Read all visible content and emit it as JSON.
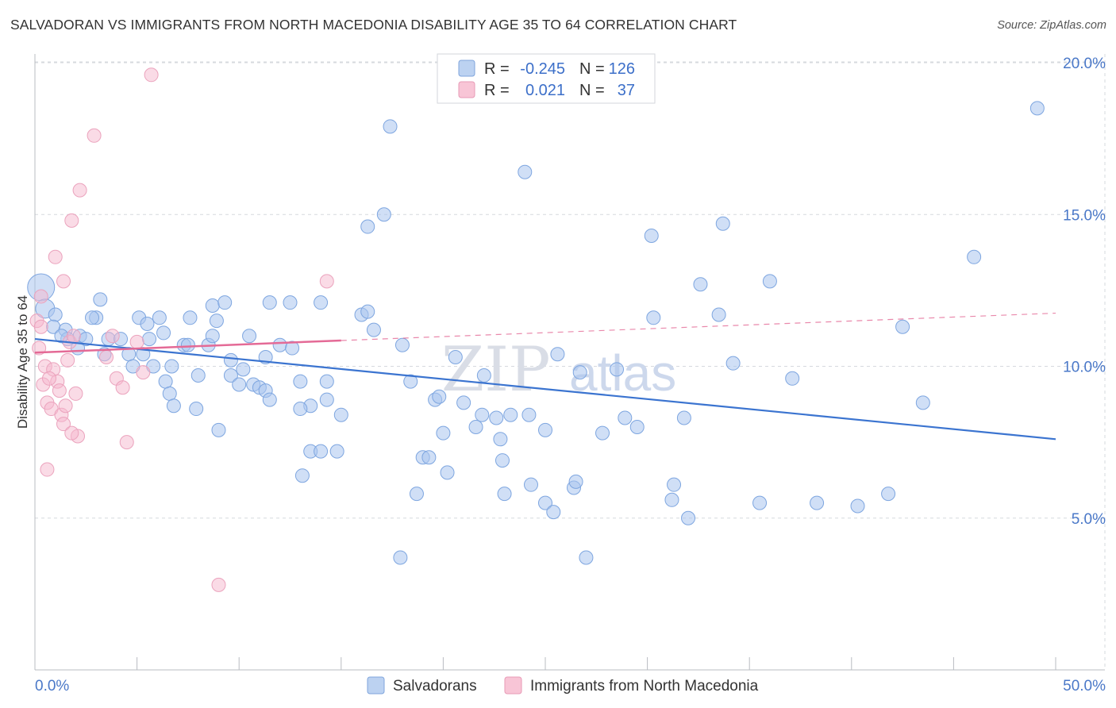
{
  "title": "SALVADORAN VS IMMIGRANTS FROM NORTH MACEDONIA DISABILITY AGE 35 TO 64 CORRELATION CHART",
  "source": "Source: ZipAtlas.com",
  "watermark": {
    "zip": "ZIP",
    "atlas": "atlas"
  },
  "colors": {
    "blue": "#3b74d0",
    "blue_fill": "#a9c5ee",
    "pink": "#e46a96",
    "pink_fill": "#f5b8cd",
    "grid": "#d6d9de",
    "axis_text": "#4a78c8"
  },
  "stats": {
    "rows": [
      {
        "r_label": "R =",
        "r_value": "-0.245",
        "n_label": "N =",
        "n_value": "126"
      },
      {
        "r_label": "R =",
        "r_value": "0.021",
        "n_label": "N =",
        "n_value": "37"
      }
    ]
  },
  "chart_data": {
    "type": "scatter",
    "title": "SALVADORAN VS IMMIGRANTS FROM NORTH MACEDONIA DISABILITY AGE 35 TO 64 CORRELATION CHART",
    "xlabel": "",
    "ylabel": "Disability Age 35 to 64",
    "xlim": [
      0,
      50
    ],
    "ylim": [
      0,
      20.5
    ],
    "x_tick_labels": [
      "0.0%",
      "50.0%"
    ],
    "y_ticks": [
      5,
      10,
      15,
      20
    ],
    "y_tick_labels": [
      "5.0%",
      "10.0%",
      "15.0%",
      "20.0%"
    ],
    "legend": [
      "Salvadorans",
      "Immigrants from North Macedonia"
    ],
    "series": [
      {
        "name": "Salvadorans",
        "r": -0.245,
        "n": 126,
        "trend": {
          "x": [
            0,
            50
          ],
          "y": [
            10.9,
            7.6
          ],
          "style": "solid"
        },
        "points": [
          [
            0.3,
            12.6
          ],
          [
            0.5,
            11.9
          ],
          [
            1.0,
            11.7
          ],
          [
            0.9,
            11.3
          ],
          [
            1.5,
            11.2
          ],
          [
            2.2,
            11.0
          ],
          [
            1.6,
            10.9
          ],
          [
            2.5,
            10.9
          ],
          [
            2.1,
            10.6
          ],
          [
            3.2,
            12.2
          ],
          [
            3.0,
            11.6
          ],
          [
            3.6,
            10.9
          ],
          [
            4.2,
            10.9
          ],
          [
            4.6,
            10.4
          ],
          [
            3.4,
            10.4
          ],
          [
            4.8,
            10.0
          ],
          [
            5.3,
            10.4
          ],
          [
            5.6,
            10.9
          ],
          [
            5.1,
            11.6
          ],
          [
            5.5,
            11.4
          ],
          [
            6.1,
            11.6
          ],
          [
            6.3,
            11.1
          ],
          [
            5.8,
            10.0
          ],
          [
            6.7,
            10.0
          ],
          [
            6.4,
            9.5
          ],
          [
            6.6,
            9.1
          ],
          [
            6.8,
            8.7
          ],
          [
            7.3,
            10.7
          ],
          [
            7.5,
            10.7
          ],
          [
            7.6,
            11.6
          ],
          [
            8.0,
            9.7
          ],
          [
            7.9,
            8.6
          ],
          [
            8.5,
            10.7
          ],
          [
            8.7,
            12.0
          ],
          [
            8.9,
            11.5
          ],
          [
            8.7,
            11.0
          ],
          [
            9.3,
            12.1
          ],
          [
            9.6,
            10.2
          ],
          [
            9.6,
            9.7
          ],
          [
            9.0,
            7.9
          ],
          [
            10.0,
            9.4
          ],
          [
            10.2,
            9.9
          ],
          [
            10.7,
            9.4
          ],
          [
            11.0,
            9.3
          ],
          [
            11.3,
            9.2
          ],
          [
            10.5,
            11.0
          ],
          [
            11.5,
            12.1
          ],
          [
            11.3,
            10.3
          ],
          [
            12.0,
            10.7
          ],
          [
            12.6,
            10.6
          ],
          [
            12.5,
            12.1
          ],
          [
            13.0,
            9.5
          ],
          [
            13.5,
            7.2
          ],
          [
            13.1,
            6.4
          ],
          [
            14.0,
            7.2
          ],
          [
            14.3,
            9.5
          ],
          [
            14.0,
            12.1
          ],
          [
            13.5,
            8.7
          ],
          [
            14.3,
            8.9
          ],
          [
            14.8,
            7.2
          ],
          [
            13.0,
            8.6
          ],
          [
            11.5,
            8.9
          ],
          [
            15.0,
            8.4
          ],
          [
            16.0,
            11.7
          ],
          [
            16.3,
            11.8
          ],
          [
            16.6,
            11.2
          ],
          [
            17.4,
            17.9
          ],
          [
            17.1,
            15.0
          ],
          [
            16.3,
            14.6
          ],
          [
            18.0,
            10.7
          ],
          [
            18.4,
            9.5
          ],
          [
            18.7,
            5.8
          ],
          [
            17.9,
            3.7
          ],
          [
            19.0,
            7.0
          ],
          [
            19.3,
            7.0
          ],
          [
            19.6,
            8.9
          ],
          [
            19.8,
            9.0
          ],
          [
            20.0,
            7.8
          ],
          [
            20.2,
            6.5
          ],
          [
            20.6,
            10.3
          ],
          [
            21.0,
            8.8
          ],
          [
            21.6,
            8.0
          ],
          [
            21.9,
            8.4
          ],
          [
            22.0,
            9.7
          ],
          [
            22.6,
            8.3
          ],
          [
            22.8,
            7.6
          ],
          [
            22.9,
            6.9
          ],
          [
            23.3,
            8.4
          ],
          [
            23.0,
            5.8
          ],
          [
            24.0,
            16.4
          ],
          [
            24.2,
            8.4
          ],
          [
            24.3,
            6.1
          ],
          [
            25.0,
            5.5
          ],
          [
            25.4,
            5.2
          ],
          [
            25.0,
            7.9
          ],
          [
            25.6,
            10.4
          ],
          [
            26.4,
            6.0
          ],
          [
            26.5,
            6.2
          ],
          [
            26.7,
            9.8
          ],
          [
            27.0,
            3.7
          ],
          [
            27.8,
            7.8
          ],
          [
            28.5,
            9.9
          ],
          [
            28.9,
            8.3
          ],
          [
            29.5,
            8.0
          ],
          [
            30.2,
            14.3
          ],
          [
            31.3,
            6.1
          ],
          [
            31.2,
            5.6
          ],
          [
            31.8,
            8.3
          ],
          [
            32.0,
            5.0
          ],
          [
            32.6,
            12.7
          ],
          [
            33.5,
            11.7
          ],
          [
            33.7,
            14.7
          ],
          [
            34.2,
            10.1
          ],
          [
            35.5,
            5.5
          ],
          [
            36.0,
            12.8
          ],
          [
            37.1,
            9.6
          ],
          [
            38.3,
            5.5
          ],
          [
            40.3,
            5.4
          ],
          [
            41.8,
            5.8
          ],
          [
            42.5,
            11.3
          ],
          [
            43.5,
            8.8
          ],
          [
            46.0,
            13.6
          ],
          [
            49.1,
            18.5
          ],
          [
            1.3,
            11.0
          ],
          [
            2.8,
            11.6
          ],
          [
            30.3,
            11.6
          ]
        ]
      },
      {
        "name": "Immigrants from North Macedonia",
        "r": 0.021,
        "n": 37,
        "trend_solid": {
          "x": [
            0,
            15
          ],
          "y": [
            10.45,
            10.85
          ]
        },
        "trend_dashed": {
          "x": [
            15,
            50
          ],
          "y": [
            10.85,
            11.75
          ]
        },
        "points": [
          [
            0.1,
            11.5
          ],
          [
            0.3,
            11.3
          ],
          [
            0.4,
            9.4
          ],
          [
            0.5,
            10.0
          ],
          [
            0.6,
            8.8
          ],
          [
            0.8,
            8.6
          ],
          [
            0.9,
            9.9
          ],
          [
            1.1,
            9.5
          ],
          [
            1.2,
            9.2
          ],
          [
            1.3,
            8.4
          ],
          [
            1.4,
            8.1
          ],
          [
            1.5,
            8.7
          ],
          [
            1.6,
            10.2
          ],
          [
            1.7,
            10.8
          ],
          [
            1.9,
            11.0
          ],
          [
            2.0,
            9.1
          ],
          [
            2.1,
            7.7
          ],
          [
            0.6,
            6.6
          ],
          [
            1.0,
            13.6
          ],
          [
            1.4,
            12.8
          ],
          [
            1.8,
            14.8
          ],
          [
            2.2,
            15.8
          ],
          [
            2.9,
            17.6
          ],
          [
            3.5,
            10.3
          ],
          [
            3.8,
            11.0
          ],
          [
            4.0,
            9.6
          ],
          [
            4.3,
            9.3
          ],
          [
            4.5,
            7.5
          ],
          [
            5.0,
            10.8
          ],
          [
            5.3,
            9.8
          ],
          [
            5.7,
            19.6
          ],
          [
            9.0,
            2.8
          ],
          [
            14.3,
            12.8
          ],
          [
            0.2,
            10.6
          ],
          [
            0.3,
            12.3
          ],
          [
            0.7,
            9.6
          ],
          [
            1.8,
            7.8
          ]
        ]
      }
    ]
  },
  "legend": {
    "items": [
      {
        "label": "Salvadorans"
      },
      {
        "label": "Immigrants from North Macedonia"
      }
    ]
  }
}
